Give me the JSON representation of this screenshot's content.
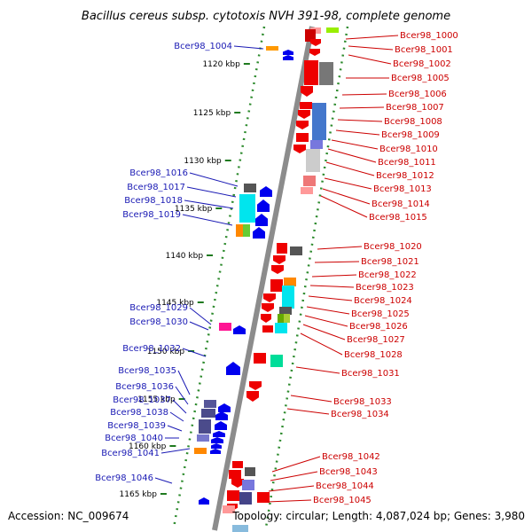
{
  "title": "Bacillus cereus subsp. cytotoxis NVH 391-98, complete genome",
  "footer": {
    "accession": "Accession: NC_009674",
    "stats": "Topology: circular; Length: 4,087,024 bp; Genes: 3,980"
  },
  "colors": {
    "forward_gene": "#ff0000",
    "reverse_gene": "#0000ff",
    "backbone": "#888888",
    "tick_mark": "#228b22",
    "left_label": "#1a1ab4",
    "right_label": "#cc0000"
  },
  "ticks": [
    "1120 kbp",
    "1125 kbp",
    "1130 kbp",
    "1135 kbp",
    "1140 kbp",
    "1145 kbp",
    "1150 kbp",
    "1155 kbp",
    "1160 kbp",
    "1165 kbp"
  ],
  "left_genes": [
    "Bcer98_1004",
    "Bcer98_1016",
    "Bcer98_1017",
    "Bcer98_1018",
    "Bcer98_1019",
    "Bcer98_1029",
    "Bcer98_1030",
    "Bcer98_1032",
    "Bcer98_1035",
    "Bcer98_1036",
    "Bcer98_1037",
    "Bcer98_1038",
    "Bcer98_1039",
    "Bcer98_1040",
    "Bcer98_1041",
    "Bcer98_1046"
  ],
  "right_genes": [
    "Bcer98_1000",
    "Bcer98_1001",
    "Bcer98_1002",
    "Bcer98_1005",
    "Bcer98_1006",
    "Bcer98_1007",
    "Bcer98_1008",
    "Bcer98_1009",
    "Bcer98_1010",
    "Bcer98_1011",
    "Bcer98_1012",
    "Bcer98_1013",
    "Bcer98_1014",
    "Bcer98_1015",
    "Bcer98_1020",
    "Bcer98_1021",
    "Bcer98_1022",
    "Bcer98_1023",
    "Bcer98_1024",
    "Bcer98_1025",
    "Bcer98_1026",
    "Bcer98_1027",
    "Bcer98_1028",
    "Bcer98_1031",
    "Bcer98_1033",
    "Bcer98_1034",
    "Bcer98_1042",
    "Bcer98_1043",
    "Bcer98_1044",
    "Bcer98_1045"
  ]
}
